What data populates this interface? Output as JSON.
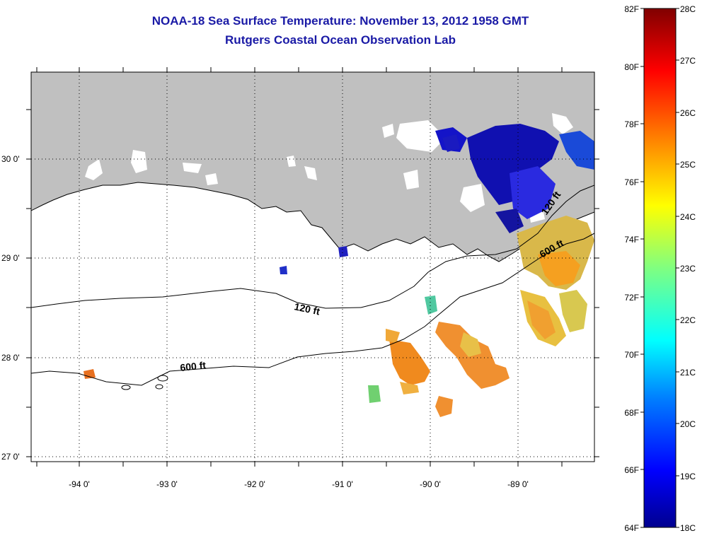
{
  "title": "NOAA-18 Sea Surface Temperature:  November 13, 2012 1958 GMT",
  "subtitle": "Rutgers Coastal Ocean Observation Lab",
  "lon_labels": [
    "-94 0'",
    "-93 0'",
    "-92 0'",
    "-91 0'",
    "-90 0'",
    "-89 0'"
  ],
  "lat_labels": [
    "30 0'",
    "29 0'",
    "28 0'",
    "27 0'"
  ],
  "contour_labels": {
    "shelf_120_west": "120 ft",
    "slope_600_west": "600 ft",
    "shelf_120_east": "120 ft",
    "slope_600_east": "600 ft"
  },
  "colorbar": {
    "fahrenheit": [
      "82F",
      "80F",
      "78F",
      "76F",
      "74F",
      "72F",
      "70F",
      "68F",
      "66F",
      "64F"
    ],
    "celsius": [
      "28C",
      "27C",
      "26C",
      "25C",
      "24C",
      "23C",
      "22C",
      "21C",
      "20C",
      "19C",
      "18C"
    ]
  },
  "colors": {
    "title": "#1a1aa6",
    "land": "#c0c0c0",
    "cold": "#1414c8",
    "warm": "#f08a1e"
  }
}
